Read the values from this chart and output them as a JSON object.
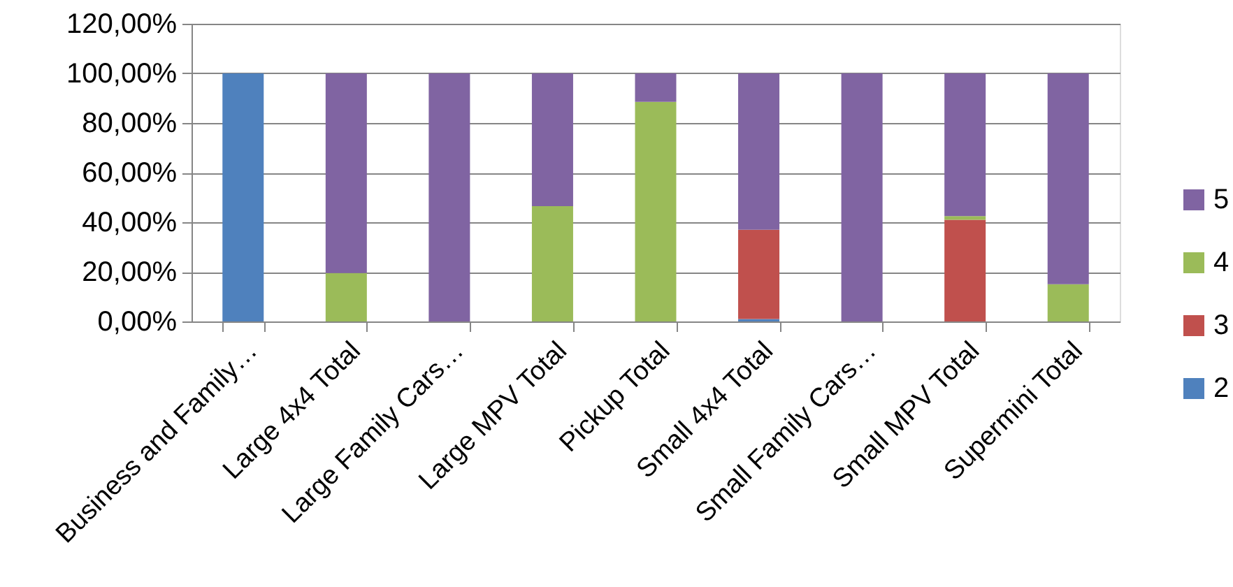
{
  "chart_data": {
    "type": "bar",
    "stacked": true,
    "categories": [
      "Business and Family…",
      "Large 4x4 Total",
      "Large Family Cars…",
      "Large MPV Total",
      "Pickup Total",
      "Small 4x4 Total",
      "Small Family Cars…",
      "Small MPV Total",
      "Supermini Total"
    ],
    "series": [
      {
        "name": "2",
        "color": "#4f81bd",
        "values": [
          100,
          0,
          0,
          0,
          0,
          1,
          0,
          0,
          0
        ]
      },
      {
        "name": "3",
        "color": "#c0504d",
        "values": [
          0,
          0,
          0,
          0,
          0,
          36,
          0,
          41,
          0
        ]
      },
      {
        "name": "4",
        "color": "#9bbb59",
        "values": [
          0,
          19.5,
          0,
          46.5,
          88.5,
          0,
          0,
          1.5,
          15
        ]
      },
      {
        "name": "5",
        "color": "#8064a2",
        "values": [
          0,
          80.5,
          100,
          53.5,
          11.5,
          63,
          100,
          57.5,
          85
        ]
      }
    ],
    "ylim": [
      0,
      120
    ],
    "yticks": [
      {
        "value": 0,
        "label": "0,00%"
      },
      {
        "value": 20,
        "label": "20,00%"
      },
      {
        "value": 40,
        "label": "40,00%"
      },
      {
        "value": 60,
        "label": "60,00%"
      },
      {
        "value": 80,
        "label": "80,00%"
      },
      {
        "value": 100,
        "label": "100,00%"
      },
      {
        "value": 120,
        "label": "120,00%"
      }
    ],
    "grid": "y",
    "legend": "right"
  }
}
